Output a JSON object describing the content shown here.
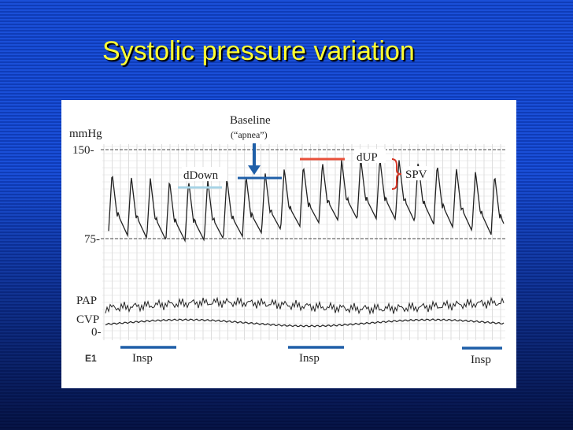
{
  "slide": {
    "title": "Systolic pressure variation"
  },
  "figure": {
    "unit": "mmHg",
    "axis_labels": [
      "150-",
      "75-",
      "0-"
    ],
    "trace_labels": [
      "PAP",
      "CVP"
    ],
    "baseline": "Baseline",
    "baseline_note": "(“apnea”)",
    "ddown": "dDown",
    "dup": "dUP",
    "spv": "SPV",
    "insp": [
      "Insp",
      "Insp",
      "Insp"
    ],
    "panel": "E1"
  }
}
